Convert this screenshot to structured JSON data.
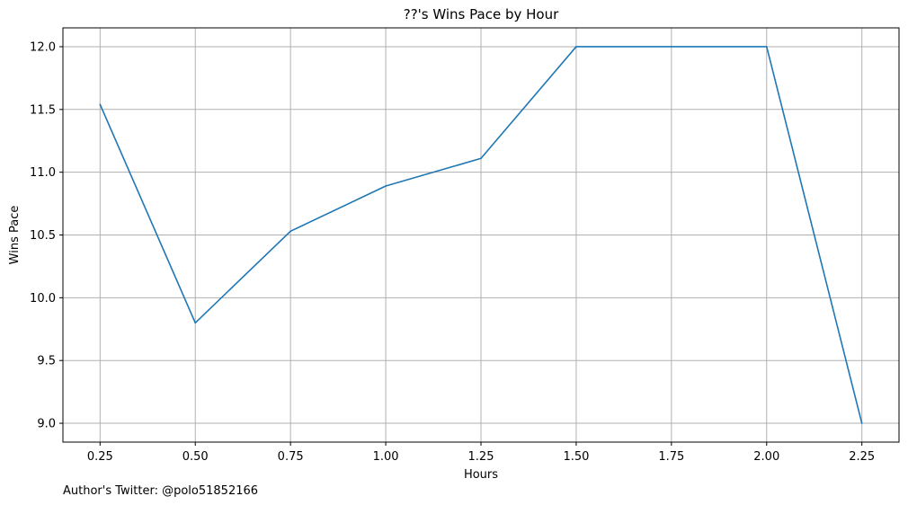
{
  "chart_data": {
    "type": "line",
    "title": "??'s Wins Pace by Hour",
    "xlabel": "Hours",
    "ylabel": "Wins Pace",
    "x": [
      0.25,
      0.5,
      0.75,
      1.0,
      1.25,
      1.5,
      1.75,
      2.0,
      2.25
    ],
    "series": [
      {
        "values": [
          11.54,
          9.8,
          10.53,
          10.89,
          11.11,
          12.0,
          12.0,
          12.0,
          9.0
        ],
        "color": "#1f77b4"
      }
    ],
    "xlim": [
      0.1525,
      2.3475
    ],
    "ylim": [
      8.85,
      12.15
    ],
    "x_ticks": [
      0.25,
      0.5,
      0.75,
      1.0,
      1.25,
      1.5,
      1.75,
      2.0,
      2.25
    ],
    "x_tick_labels": [
      "0.25",
      "0.50",
      "0.75",
      "1.00",
      "1.25",
      "1.50",
      "1.75",
      "2.00",
      "2.25"
    ],
    "y_ticks": [
      9.0,
      9.5,
      10.0,
      10.5,
      11.0,
      11.5,
      12.0
    ],
    "y_tick_labels": [
      "9.0",
      "9.5",
      "10.0",
      "10.5",
      "11.0",
      "11.5",
      "12.0"
    ],
    "grid": true,
    "grid_color": "#b0b0b0",
    "footer": "Author's Twitter: @polo51852166"
  }
}
